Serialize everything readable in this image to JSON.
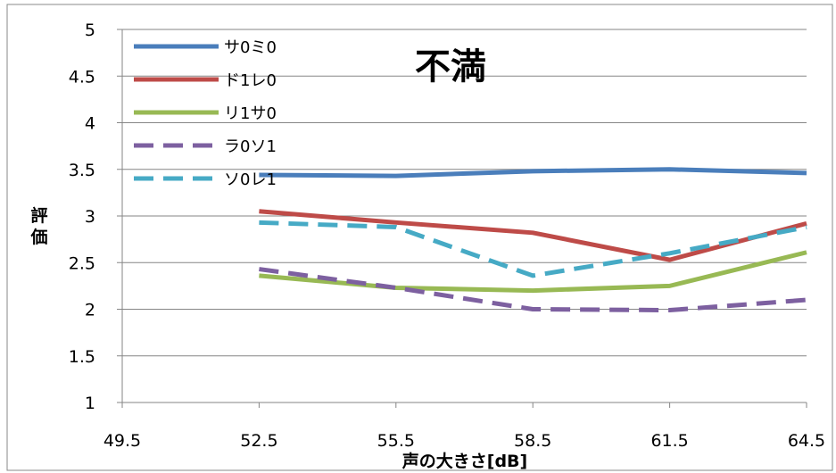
{
  "chart_data": {
    "type": "line",
    "title": "不満",
    "xlabel": "声の大きさ[dB]",
    "ylabel": "評価",
    "x_ticks": [
      "49.5",
      "52.5",
      "55.5",
      "58.5",
      "61.5",
      "64.5"
    ],
    "y_ticks": [
      "1",
      "1.5",
      "2",
      "2.5",
      "3",
      "3.5",
      "4",
      "4.5",
      "5"
    ],
    "xlim": [
      49.5,
      64.5
    ],
    "ylim": [
      1,
      5
    ],
    "grid": "horizontal",
    "legend_position": "top-left",
    "x": [
      52.5,
      55.5,
      58.5,
      61.5,
      64.5
    ],
    "series": [
      {
        "name": "サ0ミ0",
        "color": "#4a7ebb",
        "dash": "solid",
        "values": [
          3.44,
          3.43,
          3.48,
          3.5,
          3.46
        ]
      },
      {
        "name": "ド1レ0",
        "color": "#be4b48",
        "dash": "solid",
        "values": [
          3.05,
          2.93,
          2.82,
          2.53,
          2.92
        ]
      },
      {
        "name": "リ1サ0",
        "color": "#98b954",
        "dash": "solid",
        "values": [
          2.36,
          2.23,
          2.2,
          2.25,
          2.61
        ]
      },
      {
        "name": "ラ0ソ1",
        "color": "#7d60a0",
        "dash": "dashed",
        "values": [
          2.43,
          2.23,
          2.0,
          1.99,
          2.1
        ]
      },
      {
        "name": "ソ0レ1",
        "color": "#46aac5",
        "dash": "dashed",
        "values": [
          2.93,
          2.88,
          2.36,
          2.6,
          2.88
        ]
      }
    ]
  }
}
